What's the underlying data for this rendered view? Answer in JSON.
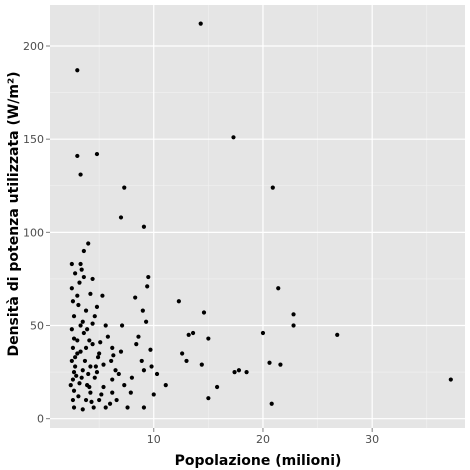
{
  "chart_data": {
    "type": "scatter",
    "xlabel": "Popolazione (milioni)",
    "ylabel": "Densità di potenza utilizzata (W/m²)",
    "xlim": [
      0.5,
      38.5
    ],
    "ylim": [
      -5,
      222
    ],
    "x_ticks": [
      10,
      20,
      30
    ],
    "y_ticks": [
      0,
      50,
      100,
      150,
      200
    ],
    "x_tick_labels": [
      "10",
      "20",
      "30"
    ],
    "y_tick_labels": [
      "0",
      "50",
      "100",
      "150",
      "200"
    ],
    "grid": true,
    "colors": {
      "panel": "#e5e5e5",
      "grid_major": "#ffffff",
      "grid_minor": "#f2f2f2",
      "point": "#000000"
    },
    "points": [
      [
        14.3,
        212
      ],
      [
        3.0,
        187
      ],
      [
        17.3,
        151
      ],
      [
        3.0,
        141
      ],
      [
        4.8,
        142
      ],
      [
        3.3,
        131
      ],
      [
        7.3,
        124
      ],
      [
        20.9,
        124
      ],
      [
        7.0,
        108
      ],
      [
        9.1,
        103
      ],
      [
        4.0,
        94
      ],
      [
        3.6,
        90
      ],
      [
        3.3,
        83
      ],
      [
        3.4,
        80
      ],
      [
        2.5,
        83
      ],
      [
        2.8,
        78
      ],
      [
        3.6,
        76
      ],
      [
        4.4,
        75
      ],
      [
        9.5,
        76
      ],
      [
        3.2,
        73
      ],
      [
        9.4,
        71
      ],
      [
        21.4,
        70
      ],
      [
        4.2,
        67
      ],
      [
        5.3,
        66
      ],
      [
        8.3,
        65
      ],
      [
        2.6,
        63
      ],
      [
        3.1,
        61
      ],
      [
        12.3,
        63
      ],
      [
        4.8,
        60
      ],
      [
        9.0,
        58
      ],
      [
        14.6,
        57
      ],
      [
        22.8,
        56
      ],
      [
        2.7,
        55
      ],
      [
        4.6,
        55
      ],
      [
        3.5,
        52
      ],
      [
        9.3,
        52
      ],
      [
        3.3,
        50
      ],
      [
        5.6,
        50
      ],
      [
        7.1,
        50
      ],
      [
        22.8,
        50
      ],
      [
        2.5,
        48
      ],
      [
        3.9,
        48
      ],
      [
        13.2,
        45
      ],
      [
        13.6,
        46
      ],
      [
        20.0,
        46
      ],
      [
        26.8,
        45
      ],
      [
        2.7,
        43
      ],
      [
        4.1,
        42
      ],
      [
        8.6,
        44
      ],
      [
        15.0,
        43
      ],
      [
        2.6,
        38
      ],
      [
        4.4,
        40
      ],
      [
        6.2,
        38
      ],
      [
        9.7,
        37
      ],
      [
        3.0,
        35
      ],
      [
        5.0,
        35
      ],
      [
        7.0,
        36
      ],
      [
        12.6,
        35
      ],
      [
        2.5,
        31
      ],
      [
        3.7,
        31
      ],
      [
        6.1,
        31
      ],
      [
        8.9,
        31
      ],
      [
        13.0,
        31
      ],
      [
        2.8,
        28
      ],
      [
        4.2,
        28
      ],
      [
        5.4,
        29
      ],
      [
        9.8,
        28
      ],
      [
        14.4,
        29
      ],
      [
        20.6,
        30
      ],
      [
        21.6,
        29
      ],
      [
        2.7,
        25
      ],
      [
        3.5,
        26
      ],
      [
        4.8,
        25
      ],
      [
        6.5,
        26
      ],
      [
        9.1,
        26
      ],
      [
        17.8,
        26
      ],
      [
        17.4,
        25
      ],
      [
        18.5,
        25
      ],
      [
        2.6,
        21
      ],
      [
        3.4,
        22
      ],
      [
        4.6,
        22
      ],
      [
        6.2,
        21
      ],
      [
        8.0,
        22
      ],
      [
        2.4,
        18
      ],
      [
        3.9,
        18
      ],
      [
        5.4,
        17
      ],
      [
        7.3,
        18
      ],
      [
        11.1,
        18
      ],
      [
        15.8,
        17
      ],
      [
        2.7,
        15
      ],
      [
        4.2,
        14
      ],
      [
        6.2,
        14
      ],
      [
        7.9,
        14
      ],
      [
        10.0,
        13
      ],
      [
        2.6,
        10
      ],
      [
        3.8,
        10
      ],
      [
        5.0,
        10
      ],
      [
        6.6,
        10
      ],
      [
        15.0,
        11
      ],
      [
        2.7,
        6
      ],
      [
        3.5,
        5
      ],
      [
        4.5,
        6
      ],
      [
        5.6,
        6
      ],
      [
        9.1,
        6
      ],
      [
        20.8,
        8
      ],
      [
        37.2,
        21
      ],
      [
        3.0,
        42
      ],
      [
        3.8,
        38
      ],
      [
        4.9,
        33
      ],
      [
        2.9,
        23
      ],
      [
        3.2,
        19
      ],
      [
        4.1,
        17
      ],
      [
        5.2,
        13
      ],
      [
        3.1,
        12
      ],
      [
        4.3,
        9
      ],
      [
        6.0,
        8
      ],
      [
        7.6,
        6
      ],
      [
        2.8,
        33
      ],
      [
        3.6,
        46
      ],
      [
        5.8,
        44
      ],
      [
        4.7,
        28
      ],
      [
        6.8,
        24
      ],
      [
        3.3,
        36
      ],
      [
        4.0,
        24
      ],
      [
        2.5,
        70
      ],
      [
        3.0,
        66
      ],
      [
        3.8,
        58
      ],
      [
        4.4,
        51
      ],
      [
        5.1,
        41
      ],
      [
        8.4,
        40
      ],
      [
        6.3,
        34
      ],
      [
        10.3,
        24
      ]
    ]
  }
}
